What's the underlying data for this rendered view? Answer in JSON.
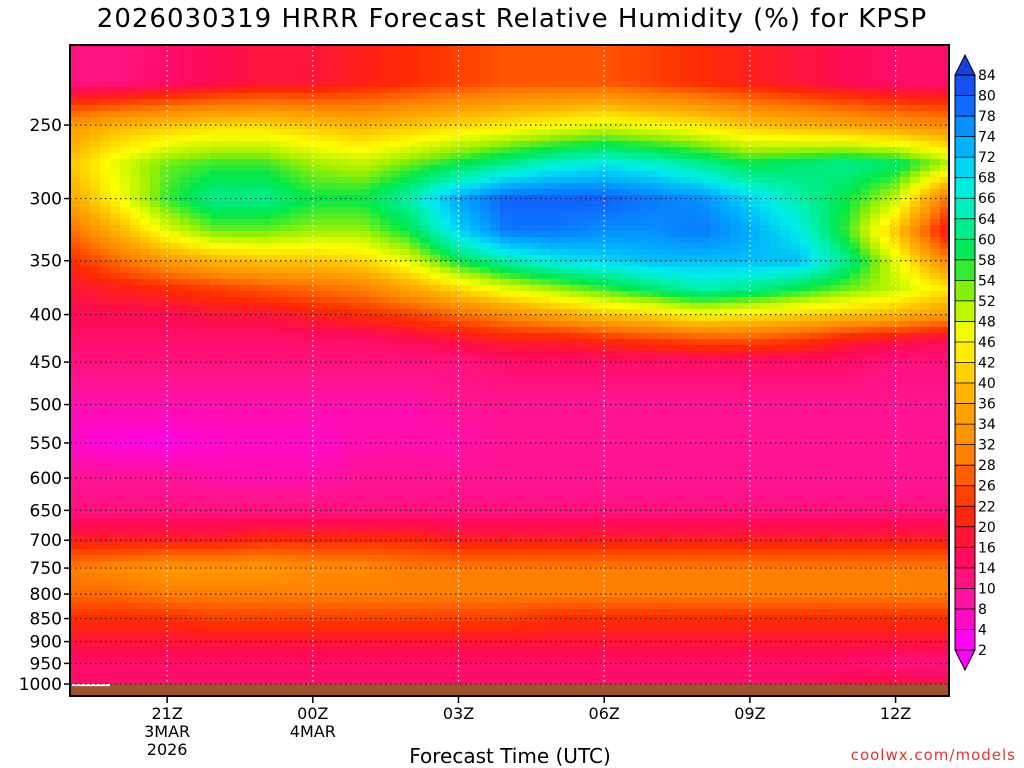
{
  "title": "2026030319 HRRR Forecast Relative Humidity (%) for KPSP",
  "credit": "coolwx.com/models",
  "colors": {
    "ground": "#a0522d",
    "stops": [
      {
        "v": 2,
        "c": "#ff00ff"
      },
      {
        "v": 10,
        "c": "#ff1493"
      },
      {
        "v": 16,
        "c": "#ff0a55"
      },
      {
        "v": 22,
        "c": "#ff2a00"
      },
      {
        "v": 30,
        "c": "#ff7f00"
      },
      {
        "v": 38,
        "c": "#ffb400"
      },
      {
        "v": 46,
        "c": "#ffff00"
      },
      {
        "v": 52,
        "c": "#a0f000"
      },
      {
        "v": 58,
        "c": "#00e84a"
      },
      {
        "v": 64,
        "c": "#00f0b0"
      },
      {
        "v": 68,
        "c": "#00ecec"
      },
      {
        "v": 74,
        "c": "#00a8ff"
      },
      {
        "v": 80,
        "c": "#1060ff"
      },
      {
        "v": 84,
        "c": "#1a3fe0"
      }
    ]
  },
  "chart_data": {
    "type": "heatmap",
    "title": "2026030319 HRRR Forecast Relative Humidity (%) for KPSP",
    "xlabel": "Forecast Time (UTC)",
    "ylabel": "",
    "x": [
      19,
      20,
      21,
      22,
      23,
      24,
      25,
      26,
      27,
      28,
      29,
      30,
      31,
      32,
      33,
      34,
      35,
      36,
      37
    ],
    "xlim": [
      19.0,
      37.1
    ],
    "y_pressure": [
      225,
      250,
      275,
      300,
      325,
      350,
      375,
      400,
      425,
      450,
      500,
      550,
      600,
      650,
      700,
      750,
      800,
      850,
      900,
      950,
      1000
    ],
    "ylim": [
      205,
      1030
    ],
    "y_ticks": [
      "250",
      "300",
      "350",
      "400",
      "450",
      "500",
      "550",
      "600",
      "650",
      "700",
      "750",
      "800",
      "850",
      "900",
      "950",
      "1000"
    ],
    "x_ticks": [
      {
        "x": 21,
        "lines": [
          "21Z",
          "3MAR",
          "2026"
        ]
      },
      {
        "x": 24,
        "lines": [
          "00Z",
          "4MAR"
        ]
      },
      {
        "x": 27,
        "lines": [
          "03Z"
        ]
      },
      {
        "x": 30,
        "lines": [
          "06Z"
        ]
      },
      {
        "x": 33,
        "lines": [
          "09Z"
        ]
      },
      {
        "x": 36,
        "lines": [
          "12Z"
        ]
      }
    ],
    "grid": true,
    "legend": "right",
    "colorbar_levels": [
      84,
      80,
      78,
      74,
      72,
      68,
      66,
      64,
      60,
      58,
      54,
      52,
      48,
      46,
      42,
      40,
      36,
      34,
      32,
      28,
      26,
      22,
      20,
      16,
      14,
      10,
      8,
      4,
      2
    ],
    "ground_pressure": 1000,
    "values": [
      [
        12,
        12,
        14,
        16,
        18,
        18,
        20,
        22,
        24,
        26,
        26,
        26,
        24,
        22,
        20,
        18,
        16,
        14,
        14
      ],
      [
        34,
        38,
        40,
        42,
        42,
        40,
        38,
        40,
        42,
        44,
        46,
        48,
        46,
        44,
        40,
        38,
        36,
        34,
        32
      ],
      [
        40,
        48,
        54,
        56,
        56,
        52,
        50,
        54,
        58,
        62,
        66,
        68,
        66,
        62,
        58,
        60,
        62,
        60,
        52
      ],
      [
        36,
        46,
        56,
        62,
        62,
        58,
        58,
        64,
        74,
        80,
        80,
        80,
        78,
        76,
        70,
        64,
        58,
        50,
        30
      ],
      [
        28,
        38,
        48,
        54,
        54,
        52,
        52,
        58,
        70,
        78,
        78,
        76,
        76,
        78,
        74,
        68,
        56,
        40,
        20
      ],
      [
        22,
        28,
        34,
        38,
        40,
        40,
        42,
        48,
        58,
        64,
        68,
        70,
        72,
        72,
        72,
        72,
        62,
        48,
        32
      ],
      [
        18,
        20,
        22,
        24,
        26,
        28,
        30,
        36,
        42,
        48,
        52,
        56,
        60,
        64,
        62,
        58,
        54,
        50,
        44
      ],
      [
        16,
        16,
        16,
        18,
        18,
        20,
        22,
        24,
        28,
        32,
        36,
        40,
        42,
        46,
        44,
        42,
        40,
        38,
        34
      ],
      [
        14,
        14,
        14,
        14,
        14,
        14,
        14,
        16,
        18,
        20,
        20,
        22,
        24,
        26,
        26,
        24,
        20,
        18,
        16
      ],
      [
        12,
        12,
        12,
        12,
        12,
        12,
        12,
        12,
        12,
        14,
        14,
        14,
        14,
        14,
        14,
        14,
        14,
        12,
        12
      ],
      [
        8,
        8,
        8,
        8,
        8,
        8,
        8,
        8,
        10,
        10,
        10,
        10,
        10,
        10,
        10,
        10,
        10,
        10,
        10
      ],
      [
        6,
        4,
        4,
        6,
        6,
        6,
        8,
        8,
        8,
        10,
        10,
        10,
        10,
        10,
        10,
        10,
        10,
        10,
        10
      ],
      [
        10,
        10,
        10,
        8,
        8,
        8,
        10,
        10,
        10,
        10,
        10,
        10,
        10,
        10,
        10,
        10,
        10,
        10,
        10
      ],
      [
        12,
        12,
        12,
        12,
        12,
        12,
        12,
        12,
        12,
        12,
        12,
        12,
        12,
        12,
        12,
        12,
        12,
        12,
        12
      ],
      [
        20,
        20,
        20,
        20,
        22,
        22,
        22,
        22,
        20,
        20,
        20,
        20,
        20,
        20,
        20,
        20,
        20,
        20,
        20
      ],
      [
        30,
        32,
        34,
        34,
        34,
        32,
        32,
        30,
        30,
        30,
        30,
        30,
        30,
        30,
        30,
        30,
        30,
        30,
        30
      ],
      [
        28,
        28,
        30,
        30,
        30,
        30,
        30,
        30,
        30,
        30,
        30,
        30,
        30,
        30,
        30,
        30,
        30,
        30,
        30
      ],
      [
        22,
        22,
        22,
        24,
        24,
        24,
        24,
        24,
        24,
        24,
        22,
        22,
        22,
        22,
        22,
        22,
        22,
        22,
        22
      ],
      [
        18,
        18,
        18,
        18,
        18,
        18,
        18,
        18,
        18,
        18,
        18,
        18,
        18,
        18,
        18,
        18,
        18,
        18,
        18
      ],
      [
        14,
        14,
        14,
        14,
        14,
        14,
        14,
        14,
        14,
        14,
        14,
        14,
        14,
        14,
        14,
        14,
        14,
        12,
        12
      ],
      [
        14,
        14,
        14,
        14,
        14,
        14,
        14,
        14,
        14,
        14,
        14,
        14,
        14,
        14,
        14,
        14,
        16,
        18,
        16
      ]
    ]
  }
}
